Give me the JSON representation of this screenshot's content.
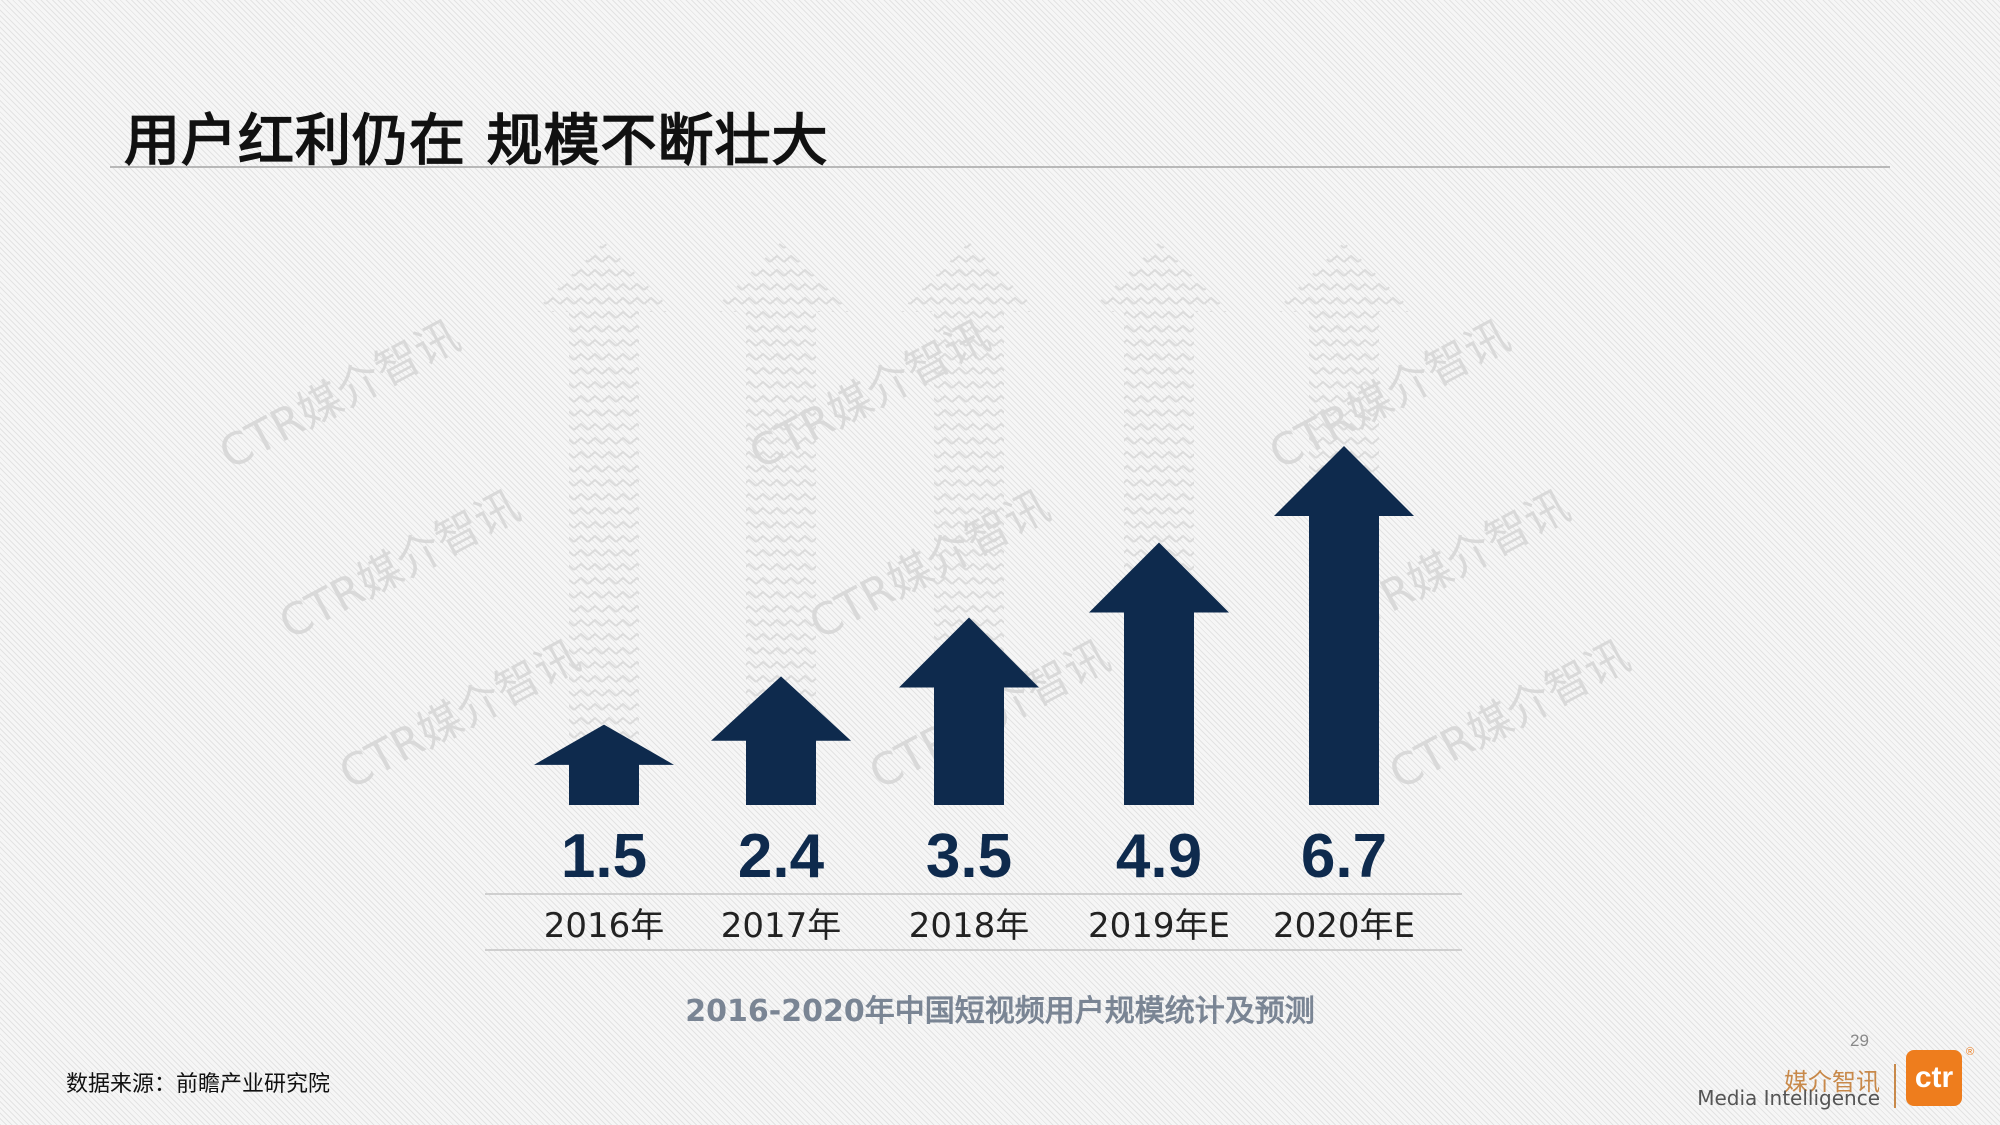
{
  "slide": {
    "title": "用户红利仍在 规模不断壮大",
    "caption": "2016-2020年中国短视频用户规模统计及预测",
    "source": "数据来源：前瞻产业研究院",
    "page_number": "29",
    "logo": {
      "cn": "媒介智讯",
      "en": "Media Intelligence",
      "mark": "ctr",
      "registered": "®"
    },
    "watermark": "CTR媒介智讯"
  },
  "colors": {
    "arrow": "#0e2a4d",
    "value_text": "#0e2a4d",
    "caption": "#7a8594",
    "logo_orange": "#ee7d1d"
  },
  "chart_data": {
    "type": "bar",
    "categories": [
      "2016年",
      "2017年",
      "2018年",
      "2019年E",
      "2020年E"
    ],
    "values": [
      1.5,
      2.4,
      3.5,
      4.9,
      6.7
    ],
    "data_labels": [
      "1.5",
      "2.4",
      "3.5",
      "4.9",
      "6.7"
    ],
    "title": "2016-2020年中国短视频用户规模统计及预测",
    "mark_shape": "up-arrow"
  }
}
